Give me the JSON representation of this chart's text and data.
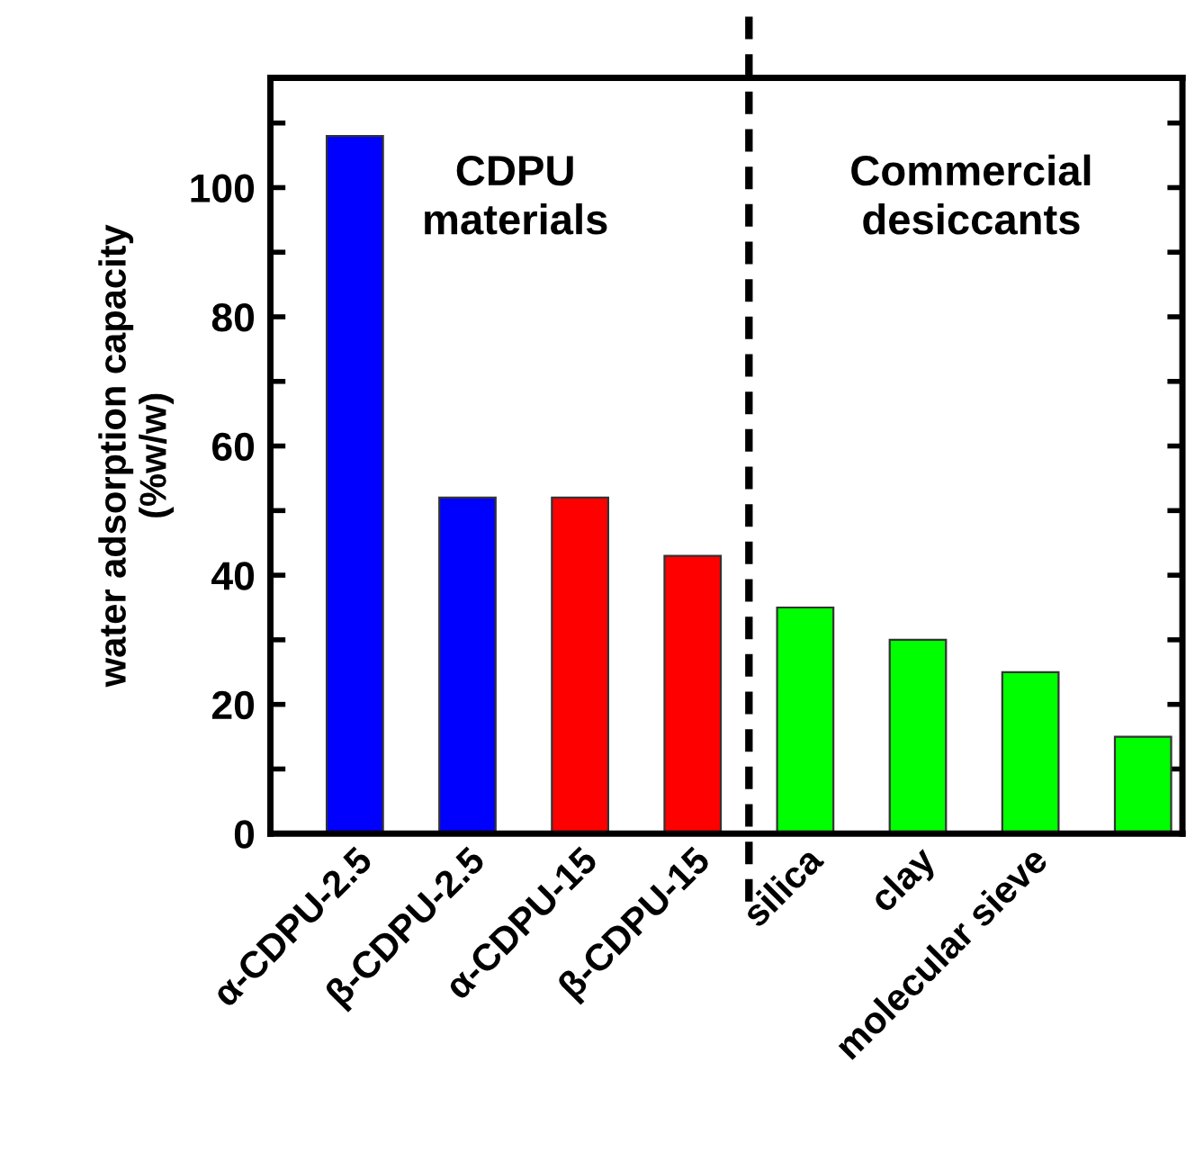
{
  "chart_data": {
    "type": "bar",
    "ylabel": "water adsorption capacity\n(%w/w)",
    "categories": [
      "α-CDPU-2.5",
      "β-CDPU-2.5",
      "α-CDPU-15",
      "β-CDPU-15",
      "silica",
      "clay",
      "molecular sieve",
      null
    ],
    "values": [
      108,
      52,
      52,
      43,
      35,
      30,
      25,
      15
    ],
    "colors": [
      "#0000ff",
      "#0000ff",
      "#ff0000",
      "#ff0000",
      "#00ff00",
      "#00ff00",
      "#00ff00",
      "#00ff00"
    ],
    "ylim": [
      0,
      117
    ],
    "yticks": [
      0,
      {
        "value": 10,
        "label": null
      },
      20,
      {
        "value": 30,
        "label": null
      },
      40,
      {
        "value": 50,
        "label": null
      },
      60,
      {
        "value": 70,
        "label": null
      },
      80,
      {
        "value": 90,
        "label": null
      },
      100,
      {
        "value": 110,
        "label": null
      }
    ],
    "annotations": [
      "CDPU\nmaterials",
      "Commercial\ndesiccants"
    ],
    "grid": false
  }
}
